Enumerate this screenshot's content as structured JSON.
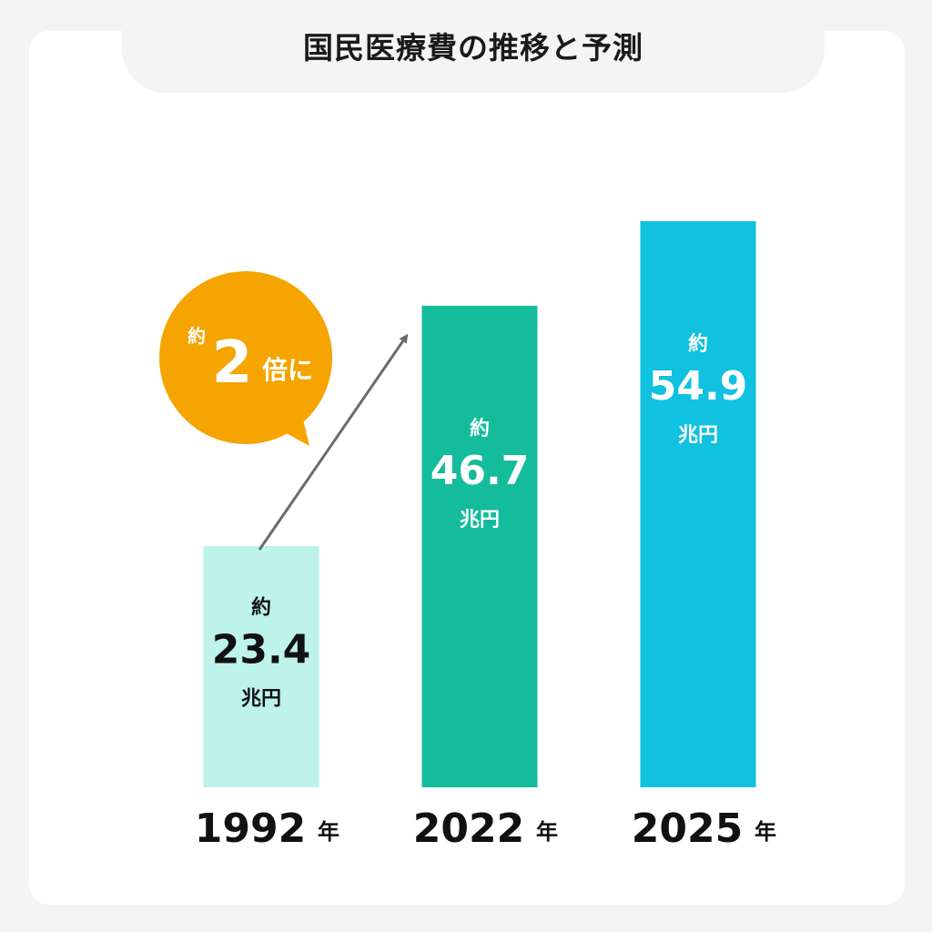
{
  "title": "国民医療費の推移と予測",
  "chart_data": {
    "type": "bar",
    "title": "国民医療費の推移と予測",
    "categories": [
      "1992",
      "2022",
      "2025"
    ],
    "year_suffix": "年",
    "values": [
      23.4,
      46.7,
      54.9
    ],
    "value_prefix": "約",
    "value_unit": "兆円",
    "value_texts": [
      "23.4",
      "46.7",
      "54.9"
    ],
    "colors": [
      "#bdf3ea",
      "#14bc9b",
      "#10c1e0"
    ],
    "value_text_colors": [
      "#111111",
      "#ffffff",
      "#ffffff"
    ],
    "annotation": {
      "prefix": "約",
      "number": "2",
      "suffix": "倍に",
      "color": "#f5a400",
      "from": "1992",
      "to": "2022"
    },
    "ylim": [
      0,
      62
    ],
    "grid": false
  }
}
